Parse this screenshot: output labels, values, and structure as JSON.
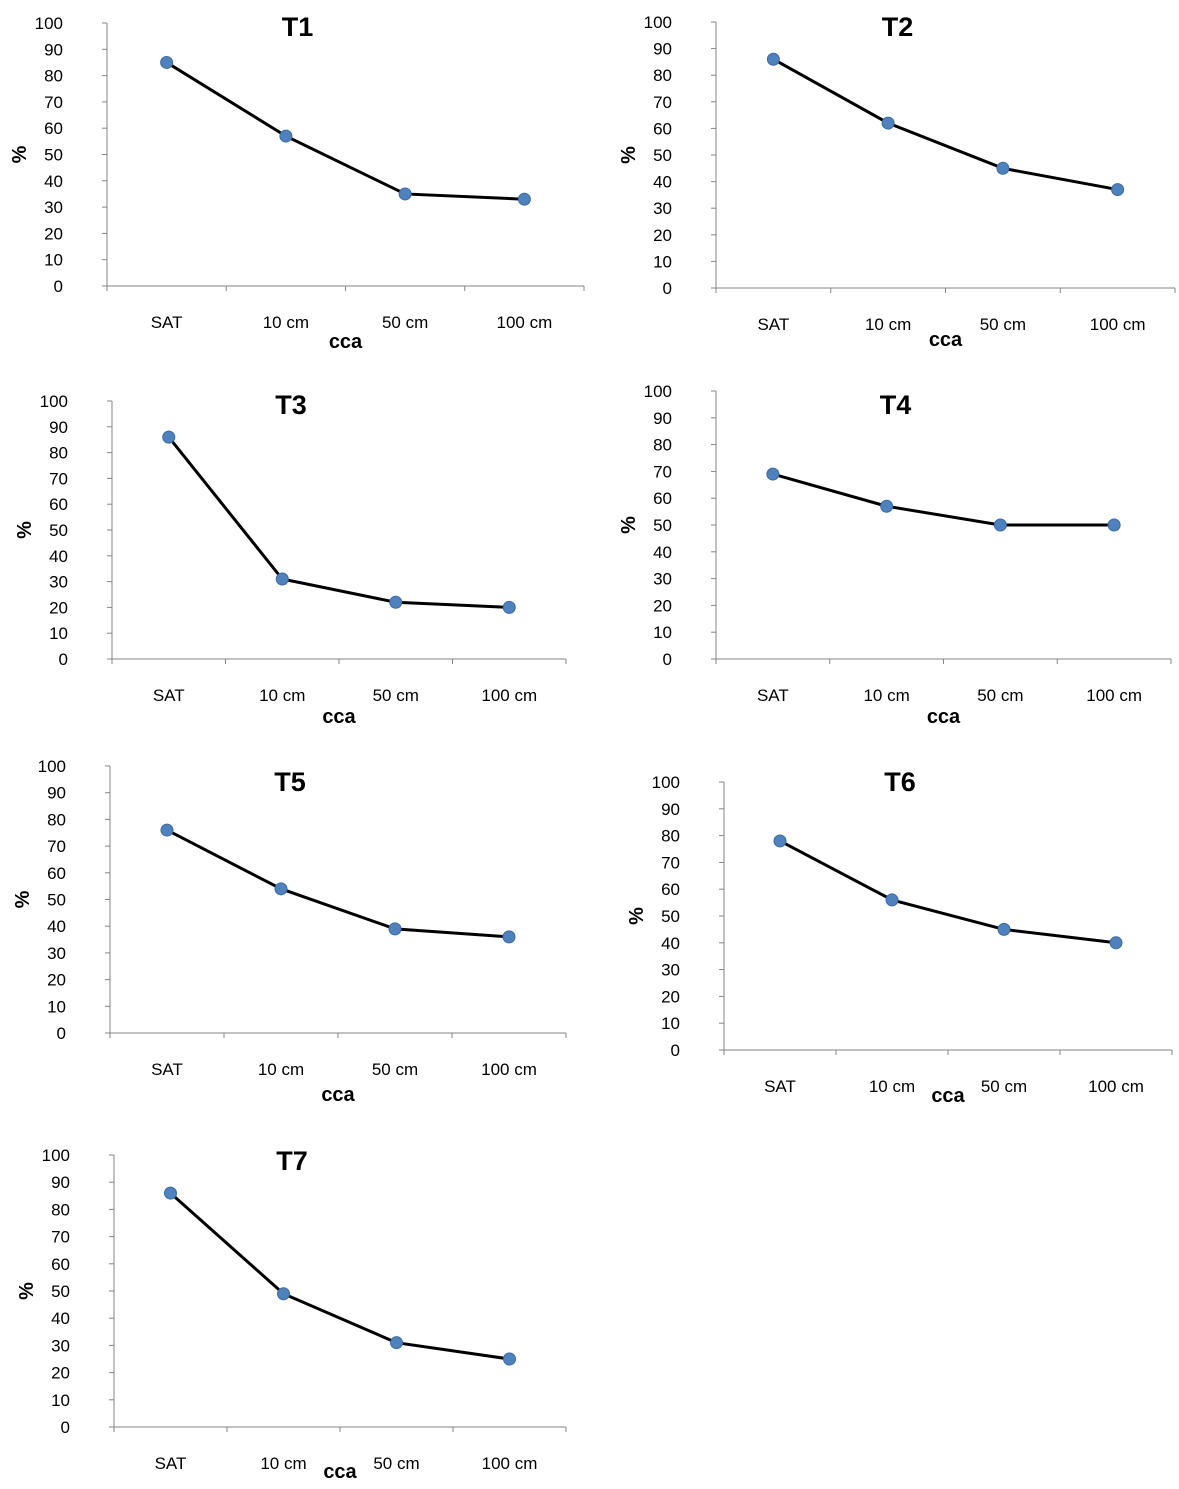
{
  "chart_data": [
    {
      "type": "line",
      "title": "T1",
      "xlabel": "cca",
      "ylabel": "%",
      "categories": [
        "SAT",
        "10 cm",
        "50 cm",
        "100 cm"
      ],
      "values": [
        85,
        57,
        35,
        33
      ],
      "ylim": [
        0,
        100
      ],
      "yticks": [
        "0",
        "10",
        "20",
        "30",
        "40",
        "50",
        "60",
        "70",
        "80",
        "90",
        "100"
      ],
      "grid": false,
      "legend": "none",
      "line_color": "#000000",
      "marker_color": "#4f81bd"
    },
    {
      "type": "line",
      "title": "T2",
      "xlabel": "cca",
      "ylabel": "%",
      "categories": [
        "SAT",
        "10 cm",
        "50 cm",
        "100 cm"
      ],
      "values": [
        86,
        62,
        45,
        37
      ],
      "ylim": [
        0,
        100
      ],
      "yticks": [
        "0",
        "10",
        "20",
        "30",
        "40",
        "50",
        "60",
        "70",
        "80",
        "90",
        "100"
      ],
      "grid": false,
      "legend": "none",
      "line_color": "#000000",
      "marker_color": "#4f81bd"
    },
    {
      "type": "line",
      "title": "T3",
      "xlabel": "cca",
      "ylabel": "%",
      "categories": [
        "SAT",
        "10 cm",
        "50 cm",
        "100 cm"
      ],
      "values": [
        86,
        31,
        22,
        20
      ],
      "ylim": [
        0,
        100
      ],
      "yticks": [
        "0",
        "10",
        "20",
        "30",
        "40",
        "50",
        "60",
        "70",
        "80",
        "90",
        "100"
      ],
      "grid": false,
      "legend": "none",
      "line_color": "#000000",
      "marker_color": "#4f81bd"
    },
    {
      "type": "line",
      "title": "T4",
      "xlabel": "cca",
      "ylabel": "%",
      "categories": [
        "SAT",
        "10 cm",
        "50 cm",
        "100 cm"
      ],
      "values": [
        69,
        57,
        50,
        50
      ],
      "ylim": [
        0,
        100
      ],
      "yticks": [
        "0",
        "10",
        "20",
        "30",
        "40",
        "50",
        "60",
        "70",
        "80",
        "90",
        "100"
      ],
      "grid": false,
      "legend": "none",
      "line_color": "#000000",
      "marker_color": "#4f81bd"
    },
    {
      "type": "line",
      "title": "T5",
      "xlabel": "cca",
      "ylabel": "%",
      "categories": [
        "SAT",
        "10 cm",
        "50 cm",
        "100 cm"
      ],
      "values": [
        76,
        54,
        39,
        36
      ],
      "ylim": [
        0,
        100
      ],
      "yticks": [
        "0",
        "10",
        "20",
        "30",
        "40",
        "50",
        "60",
        "70",
        "80",
        "90",
        "100"
      ],
      "grid": false,
      "legend": "none",
      "line_color": "#000000",
      "marker_color": "#4f81bd"
    },
    {
      "type": "line",
      "title": "T6",
      "xlabel": "cca",
      "ylabel": "%",
      "categories": [
        "SAT",
        "10 cm",
        "50 cm",
        "100 cm"
      ],
      "values": [
        78,
        56,
        45,
        40
      ],
      "ylim": [
        0,
        100
      ],
      "yticks": [
        "0",
        "10",
        "20",
        "30",
        "40",
        "50",
        "60",
        "70",
        "80",
        "90",
        "100"
      ],
      "grid": false,
      "legend": "none",
      "line_color": "#000000",
      "marker_color": "#4f81bd"
    },
    {
      "type": "line",
      "title": "T7",
      "xlabel": "cca",
      "ylabel": "%",
      "categories": [
        "SAT",
        "10 cm",
        "50 cm",
        "100 cm"
      ],
      "values": [
        86,
        49,
        31,
        25
      ],
      "ylim": [
        0,
        100
      ],
      "yticks": [
        "0",
        "10",
        "20",
        "30",
        "40",
        "50",
        "60",
        "70",
        "80",
        "90",
        "100"
      ],
      "grid": false,
      "legend": "none",
      "line_color": "#000000",
      "marker_color": "#4f81bd"
    }
  ]
}
